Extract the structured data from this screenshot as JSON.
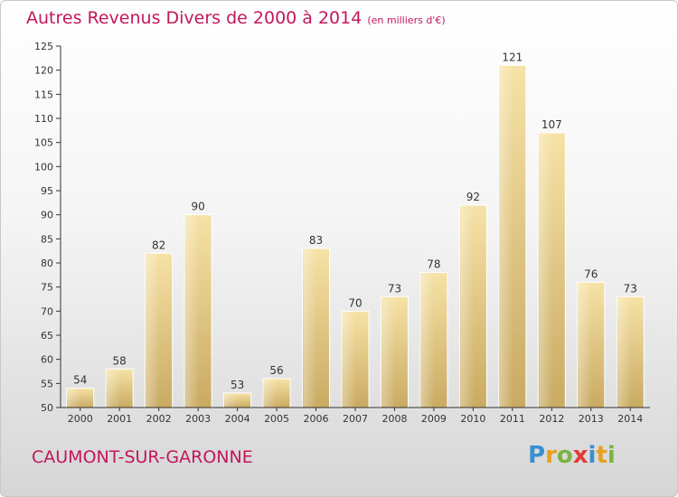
{
  "header": {
    "title": "Autres Revenus Divers de 2000 à 2014",
    "unit": "(en milliers d'€)"
  },
  "footer": {
    "city": "CAUMONT-SUR-GARONNE"
  },
  "logo": {
    "letters": [
      "P",
      "r",
      "o",
      "x",
      "i",
      "t",
      "i"
    ],
    "colors": [
      "#3a8fd0",
      "#e8a020",
      "#7cb342",
      "#e53935",
      "#3a8fd0",
      "#e8a020",
      "#7cb342"
    ]
  },
  "chart_data": {
    "type": "bar",
    "categories": [
      "2000",
      "2001",
      "2002",
      "2003",
      "2004",
      "2005",
      "2006",
      "2007",
      "2008",
      "2009",
      "2010",
      "2011",
      "2012",
      "2013",
      "2014"
    ],
    "values": [
      54,
      58,
      82,
      90,
      53,
      56,
      83,
      70,
      73,
      78,
      92,
      121,
      107,
      76,
      73
    ],
    "ylim": [
      50,
      125
    ],
    "yticks": [
      50,
      55,
      60,
      65,
      70,
      75,
      80,
      85,
      90,
      95,
      100,
      105,
      110,
      115,
      120,
      125
    ],
    "grid": false,
    "bar_color": "#e8cf8c"
  }
}
